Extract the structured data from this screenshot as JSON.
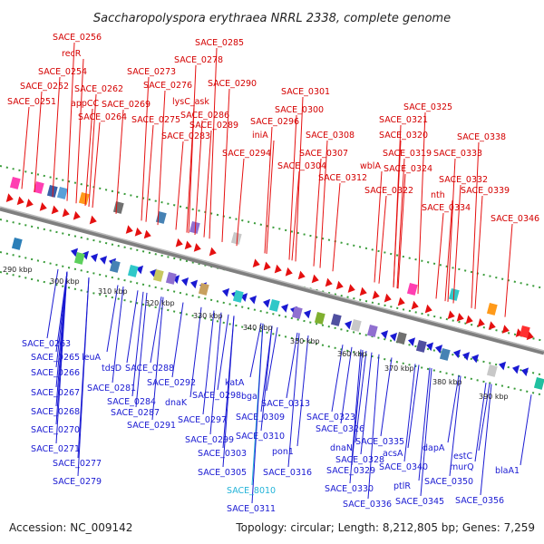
{
  "title": "Saccharopolyspora erythraea NRRL 2338, complete genome",
  "footer": {
    "accession": "Accession: NC_009142",
    "summary": "Topology: circular; Length: 8,212,805 bp; Genes: 7,259"
  },
  "colors": {
    "forward_gene": "#e51010",
    "reverse_gene": "#1a1ad2",
    "highlight_label": "#22b3d8",
    "backbone": "#7f7f7f",
    "dotted_track": "#3a9c3a"
  },
  "axis_ticks": [
    "290 kbp",
    "300 kbp",
    "310 kbp",
    "320 kbp",
    "330 kbp",
    "340 kbp",
    "350 kbp",
    "360 kbp",
    "370 kbp",
    "380 kbp",
    "390 kbp"
  ],
  "top_labels": [
    "SACE_0256",
    "recR",
    "SACE_0254",
    "SACE_0252",
    "SACE_0251",
    "appCC",
    "SACE_0262",
    "SACE_0264",
    "SACE_0278",
    "SACE_0273",
    "SACE_0276",
    "SACE_0269",
    "SACE_0275",
    "lysC_ask",
    "SACE_0283",
    "SACE_0285",
    "SACE_0290",
    "SACE_0286",
    "SACE_0289",
    "SACE_0294",
    "iniA",
    "SACE_0296",
    "SACE_0301",
    "SACE_0300",
    "SACE_0308",
    "SACE_0307",
    "SACE_0304",
    "SACE_0312",
    "wblA",
    "SACE_0319",
    "SACE_0320",
    "SACE_0321",
    "SACE_0325",
    "SACE_0324",
    "SACE_0322",
    "SACE_0333",
    "SACE_0332",
    "nth",
    "SACE_0334",
    "SACE_0338",
    "SACE_0339",
    "SACE_0346"
  ],
  "bottom_labels": [
    "SACE_0263",
    "SACE_0265",
    "leuA",
    "SACE_0266",
    "SACE_0267",
    "SACE_0268",
    "SACE_0270",
    "SACE_0271",
    "SACE_0277",
    "SACE_0279",
    "tdsD",
    "SACE_0288",
    "SACE_0281",
    "SACE_0284",
    "SACE_0287",
    "SACE_0292",
    "dnaK",
    "SACE_0291",
    "katA",
    "SACE_0298",
    "bga",
    "SACE_0297",
    "SACE_0299",
    "SACE_0303",
    "SACE_0305",
    "SACE_0313",
    "SACE_0309",
    "SACE_0310",
    "SACE_0316",
    "pon1",
    "SACE_8010",
    "SACE_0311",
    "SACE_0323",
    "SACE_0326",
    "dnaN",
    "SACE_0328",
    "SACE_0329",
    "SACE_0330",
    "SACE_0335",
    "acsA",
    "SACE_0340",
    "ptlR",
    "SACE_0336",
    "dapA",
    "SACE_0345",
    "estC",
    "murQ",
    "SACE_0350",
    "blaA1",
    "SACE_0356"
  ],
  "highlighted_label": "SACE_8010"
}
